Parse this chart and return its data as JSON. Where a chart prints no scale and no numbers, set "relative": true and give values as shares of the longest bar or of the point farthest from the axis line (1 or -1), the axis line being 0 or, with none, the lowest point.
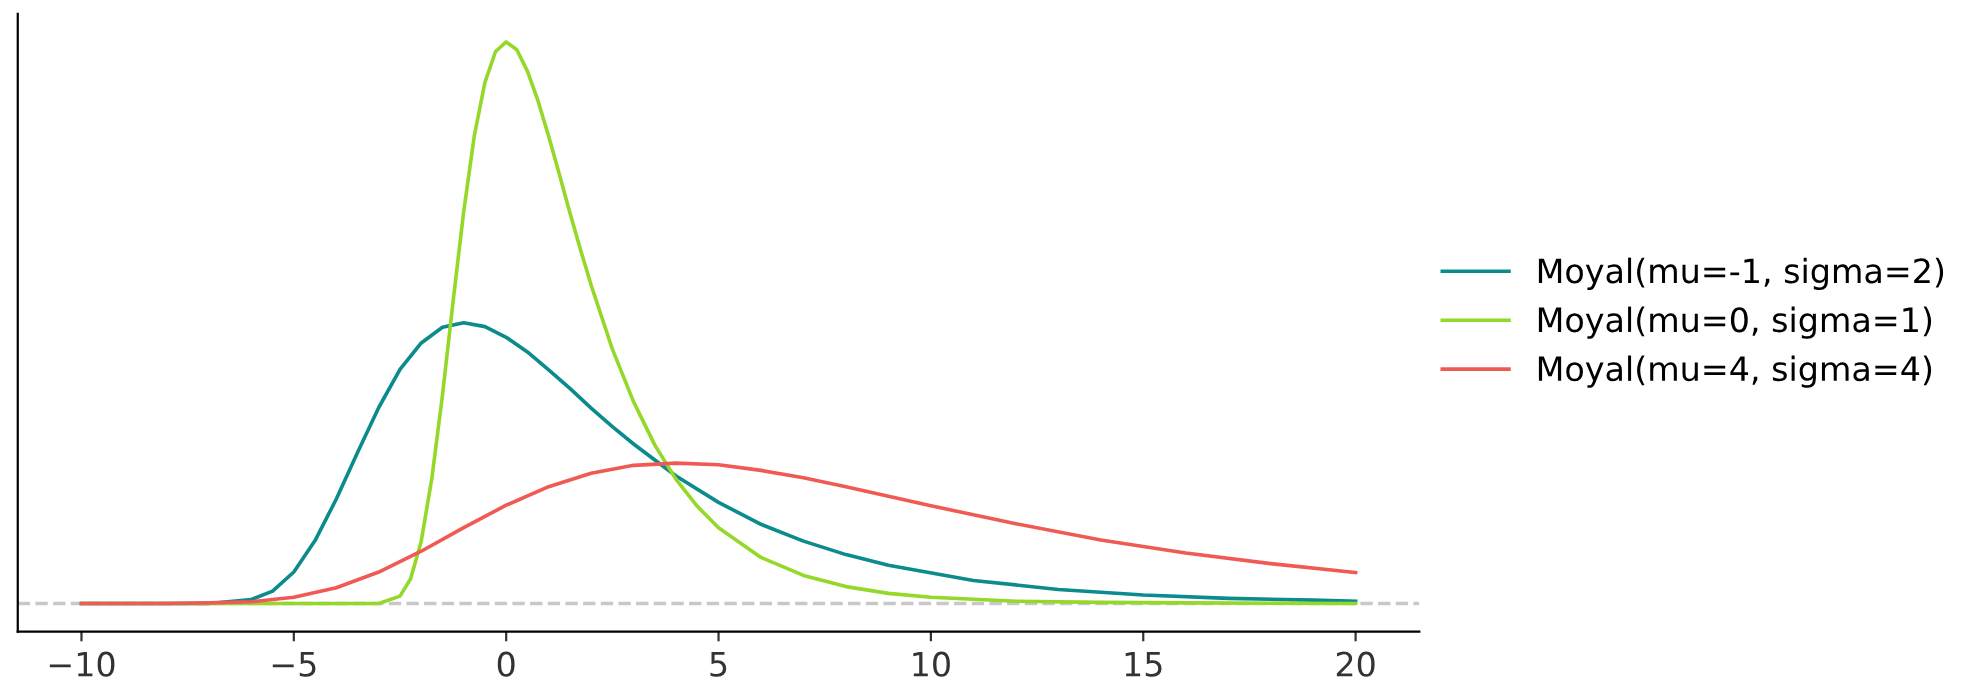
{
  "chart_data": {
    "type": "line",
    "relative": true,
    "xlim": [
      -11.5,
      21.5
    ],
    "xticks": [
      {
        "value": -10,
        "label": "−10"
      },
      {
        "value": -5,
        "label": "−5"
      },
      0,
      5,
      10,
      15,
      20
    ],
    "tick_labels": "x",
    "legend": "right",
    "grid": false,
    "marker": "none",
    "line_style": "solid",
    "ref_lines": [
      {
        "axis": "y",
        "value": 0,
        "color": "#c8c8c8",
        "line_style": "dashed"
      }
    ],
    "series": [
      {
        "name": "Moyal(mu=-1, sigma=2)",
        "color": "#0b8b8b",
        "x": [
          -10,
          -7,
          -6,
          -5.5,
          -5,
          -4.5,
          -4,
          -3.5,
          -3,
          -2.5,
          -2,
          -1.5,
          -1,
          -0.5,
          0,
          0.5,
          1,
          1.5,
          2,
          2.5,
          3,
          4,
          5,
          6,
          7,
          8,
          9,
          11,
          13,
          15,
          17,
          19,
          20
        ],
        "values": [
          0,
          0,
          0.007,
          0.022,
          0.056,
          0.112,
          0.186,
          0.269,
          0.349,
          0.417,
          0.464,
          0.492,
          0.5,
          0.493,
          0.474,
          0.448,
          0.416,
          0.383,
          0.348,
          0.315,
          0.284,
          0.227,
          0.18,
          0.141,
          0.111,
          0.087,
          0.068,
          0.041,
          0.025,
          0.015,
          0.009,
          0.006,
          0.004
        ]
      },
      {
        "name": "Moyal(mu=0, sigma=1)",
        "color": "#94d82a",
        "x": [
          -10,
          -5,
          -4,
          -3.5,
          -3,
          -2.5,
          -2.25,
          -2,
          -1.75,
          -1.5,
          -1.25,
          -1,
          -0.75,
          -0.5,
          -0.25,
          0,
          0.25,
          0.5,
          0.75,
          1,
          1.25,
          1.5,
          1.75,
          2,
          2.5,
          3,
          3.5,
          4,
          4.5,
          5,
          6,
          7,
          8,
          9,
          10,
          12,
          14,
          16,
          20
        ],
        "values": [
          0,
          0,
          0,
          0,
          0,
          0.013,
          0.044,
          0.111,
          0.223,
          0.371,
          0.538,
          0.698,
          0.833,
          0.928,
          0.983,
          1,
          0.986,
          0.948,
          0.895,
          0.832,
          0.765,
          0.696,
          0.63,
          0.567,
          0.453,
          0.359,
          0.282,
          0.221,
          0.173,
          0.135,
          0.082,
          0.05,
          0.03,
          0.018,
          0.011,
          0.004,
          0.002,
          0.001,
          0
        ]
      },
      {
        "name": "Moyal(mu=4, sigma=4)",
        "color": "#f05a54",
        "x": [
          -10,
          -8,
          -7,
          -6,
          -5,
          -4,
          -3,
          -2,
          -1,
          0,
          1,
          2,
          3,
          4,
          5,
          6,
          7,
          8,
          9,
          10,
          11,
          12,
          14,
          16,
          18,
          20
        ],
        "values": [
          0,
          0,
          0.001,
          0.003,
          0.011,
          0.028,
          0.056,
          0.093,
          0.135,
          0.175,
          0.208,
          0.232,
          0.246,
          0.25,
          0.247,
          0.237,
          0.224,
          0.208,
          0.191,
          0.174,
          0.158,
          0.142,
          0.113,
          0.09,
          0.071,
          0.055
        ]
      }
    ]
  }
}
